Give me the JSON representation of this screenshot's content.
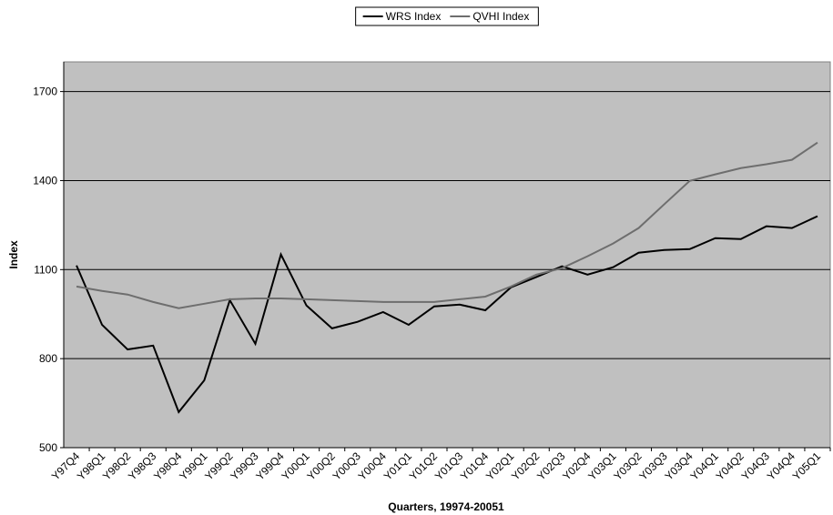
{
  "chart_data": {
    "type": "line",
    "x_label": "Quarters, 19974-20051",
    "y_label": "Index",
    "categories": [
      "Y97Q4",
      "Y98Q1",
      "Y98Q2",
      "Y98Q3",
      "Y98Q4",
      "Y99Q1",
      "Y99Q2",
      "Y99Q3",
      "Y99Q4",
      "Y00Q1",
      "Y00Q2",
      "Y00Q3",
      "Y00Q4",
      "Y01Q1",
      "Y01Q2",
      "Y01Q3",
      "Y01Q4",
      "Y02Q1",
      "Y02Q2",
      "Y02Q3",
      "Y02Q4",
      "Y03Q1",
      "Y03Q2",
      "Y03Q3",
      "Y03Q4",
      "Y04Q1",
      "Y04Q2",
      "Y04Q3",
      "Y04Q4",
      "Y05Q1"
    ],
    "series": [
      {
        "name": "WRS Index",
        "color": "#000000",
        "values": [
          1114,
          914,
          831,
          844,
          620,
          727,
          997,
          850,
          1151,
          979,
          902,
          924,
          957,
          914,
          976,
          982,
          963,
          1040,
          1075,
          1111,
          1083,
          1108,
          1157,
          1166,
          1169,
          1206,
          1203,
          1246,
          1240,
          1280
        ]
      },
      {
        "name": "QVHI Index",
        "color": "#6e6e6e",
        "values": [
          1043,
          1028,
          1016,
          991,
          970,
          985,
          1000,
          1003,
          1003,
          1000,
          997,
          994,
          991,
          991,
          991,
          1000,
          1009,
          1043,
          1083,
          1105,
          1145,
          1188,
          1240,
          1320,
          1399,
          1421,
          1442,
          1455,
          1470,
          1528
        ]
      }
    ],
    "ylim": [
      500,
      1800
    ],
    "yticks": [
      500,
      800,
      1100,
      1400,
      1700
    ],
    "grid": true,
    "legend": "top",
    "background": "#c0c0c0"
  }
}
